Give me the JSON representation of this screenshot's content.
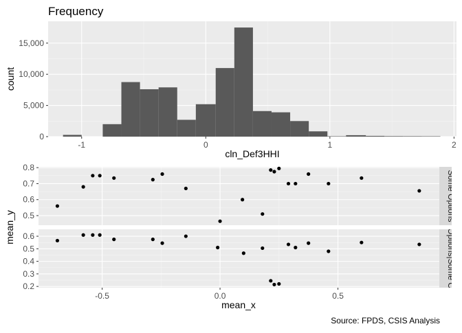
{
  "colors": {
    "panel_bg": "#ebebeb",
    "grid_major": "#ffffff",
    "bar_fill": "#595959",
    "point": "#000000",
    "strip_bg": "#d9d9d9",
    "axis_text": "#4d4d4d",
    "title_text": "#000000"
  },
  "chart_data": [
    {
      "type": "bar",
      "title": "Frequency",
      "xlabel": "cln_Def3HHI",
      "ylabel": "count",
      "xlim": [
        -1.27,
        2.02
      ],
      "ylim": [
        0,
        18500
      ],
      "xticks": [
        -1,
        0,
        1,
        2
      ],
      "xtick_labels": [
        "-1",
        "0",
        "1",
        "2"
      ],
      "yticks": [
        0,
        5000,
        10000,
        15000
      ],
      "ytick_labels": [
        "0",
        "5,000",
        "10,000",
        "15,000"
      ],
      "bins": [
        {
          "x0": -1.15,
          "x1": -1.0,
          "count": 280
        },
        {
          "x0": -0.83,
          "x1": -0.68,
          "count": 2000
        },
        {
          "x0": -0.68,
          "x1": -0.53,
          "count": 8750
        },
        {
          "x0": -0.53,
          "x1": -0.38,
          "count": 7600
        },
        {
          "x0": -0.38,
          "x1": -0.23,
          "count": 7900
        },
        {
          "x0": -0.23,
          "x1": -0.08,
          "count": 2700
        },
        {
          "x0": -0.08,
          "x1": 0.08,
          "count": 5200
        },
        {
          "x0": 0.08,
          "x1": 0.23,
          "count": 11000
        },
        {
          "x0": 0.23,
          "x1": 0.38,
          "count": 17500
        },
        {
          "x0": 0.38,
          "x1": 0.53,
          "count": 4100
        },
        {
          "x0": 0.53,
          "x1": 0.68,
          "count": 3900
        },
        {
          "x0": 0.68,
          "x1": 0.83,
          "count": 2500
        },
        {
          "x0": 0.83,
          "x1": 0.98,
          "count": 850
        },
        {
          "x0": 0.98,
          "x1": 1.13,
          "count": 60
        },
        {
          "x0": 1.13,
          "x1": 1.29,
          "count": 230
        },
        {
          "x0": 1.29,
          "x1": 1.44,
          "count": 120
        },
        {
          "x0": 1.44,
          "x1": 1.59,
          "count": 80
        },
        {
          "x0": 1.59,
          "x1": 1.74,
          "count": 70
        },
        {
          "x0": 1.74,
          "x1": 1.89,
          "count": 60
        }
      ],
      "grid": true
    },
    {
      "type": "scatter",
      "xlabel": "mean_x",
      "ylabel": "mean_y",
      "xlim": [
        -0.77,
        0.93
      ],
      "xticks": [
        -0.5,
        0.0,
        0.5
      ],
      "xtick_labels": [
        "-0.5",
        "0.0",
        "0.5"
      ],
      "grid": true,
      "facets": [
        {
          "strip_label": "Some Options",
          "ylim": [
            0.44,
            0.805
          ],
          "yticks": [
            0.5,
            0.6,
            0.7,
            0.8
          ],
          "ytick_labels": [
            "0.5",
            "0.6",
            "0.7",
            "0.8"
          ],
          "points": [
            {
              "x": -0.69,
              "y": 0.56
            },
            {
              "x": -0.58,
              "y": 0.68
            },
            {
              "x": -0.54,
              "y": 0.75
            },
            {
              "x": -0.51,
              "y": 0.75
            },
            {
              "x": -0.45,
              "y": 0.735
            },
            {
              "x": -0.285,
              "y": 0.725
            },
            {
              "x": -0.245,
              "y": 0.76
            },
            {
              "x": -0.145,
              "y": 0.67
            },
            {
              "x": 0.0,
              "y": 0.465
            },
            {
              "x": 0.095,
              "y": 0.6
            },
            {
              "x": 0.18,
              "y": 0.51
            },
            {
              "x": 0.215,
              "y": 0.785
            },
            {
              "x": 0.23,
              "y": 0.775
            },
            {
              "x": 0.25,
              "y": 0.795
            },
            {
              "x": 0.29,
              "y": 0.7
            },
            {
              "x": 0.32,
              "y": 0.7
            },
            {
              "x": 0.375,
              "y": 0.76
            },
            {
              "x": 0.46,
              "y": 0.7
            },
            {
              "x": 0.6,
              "y": 0.735
            },
            {
              "x": 0.845,
              "y": 0.655
            }
          ]
        },
        {
          "strip_label": "Options|Some O",
          "ylim": [
            0.19,
            0.655
          ],
          "yticks": [
            0.2,
            0.3,
            0.4,
            0.5,
            0.6
          ],
          "ytick_labels": [
            "0.2",
            "0.3",
            "0.4",
            "0.5",
            "0.6"
          ],
          "points": [
            {
              "x": -0.69,
              "y": 0.565
            },
            {
              "x": -0.58,
              "y": 0.61
            },
            {
              "x": -0.54,
              "y": 0.61
            },
            {
              "x": -0.51,
              "y": 0.61
            },
            {
              "x": -0.45,
              "y": 0.575
            },
            {
              "x": -0.285,
              "y": 0.575
            },
            {
              "x": -0.245,
              "y": 0.545
            },
            {
              "x": -0.145,
              "y": 0.6
            },
            {
              "x": -0.01,
              "y": 0.51
            },
            {
              "x": 0.1,
              "y": 0.465
            },
            {
              "x": 0.18,
              "y": 0.505
            },
            {
              "x": 0.215,
              "y": 0.245
            },
            {
              "x": 0.23,
              "y": 0.215
            },
            {
              "x": 0.25,
              "y": 0.22
            },
            {
              "x": 0.29,
              "y": 0.535
            },
            {
              "x": 0.32,
              "y": 0.51
            },
            {
              "x": 0.375,
              "y": 0.545
            },
            {
              "x": 0.46,
              "y": 0.48
            },
            {
              "x": 0.6,
              "y": 0.55
            },
            {
              "x": 0.845,
              "y": 0.535
            }
          ]
        }
      ]
    }
  ],
  "caption": "Source: FPDS, CSIS Analysis"
}
